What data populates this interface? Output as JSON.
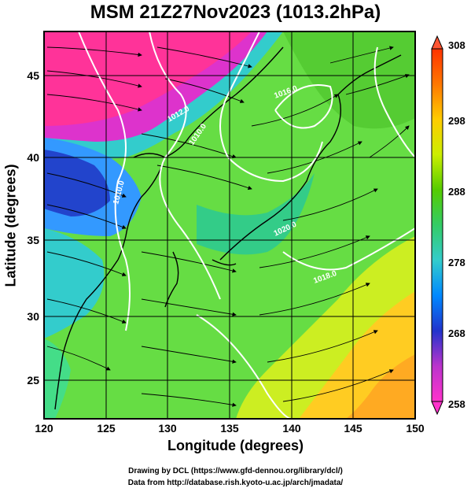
{
  "title": "MSM 21Z27Nov2023 (1013.2hPa)",
  "map": {
    "x_axis_title": "Longitude (degrees)",
    "y_axis_title": "Latitude  (degrees)",
    "x_ticks": [
      "120",
      "125",
      "130",
      "135",
      "140",
      "145",
      "150"
    ],
    "y_ticks": [
      "25",
      "30",
      "35",
      "40",
      "45"
    ],
    "x_range": [
      120,
      150
    ],
    "y_range": [
      22.4,
      47.6
    ],
    "contour_labels": [
      "1012.0",
      "1010.0",
      "1010.0",
      "1016.0",
      "1020.0",
      "1018.0"
    ]
  },
  "colorbar": {
    "ticks": [
      "258",
      "268",
      "278",
      "288",
      "298",
      "308"
    ],
    "range": [
      258,
      308
    ],
    "colors": [
      "#ff33cc",
      "#cc33cc",
      "#3333cc",
      "#0099ff",
      "#33cccc",
      "#33cc66",
      "#66cc00",
      "#ccee00",
      "#ffcc00",
      "#ff6600",
      "#ff3300"
    ]
  },
  "credits": {
    "line1": "Drawing by DCL (https://www.gfd-dennou.org/library/dcl/)",
    "line2": "Data from http://database.rish.kyoto-u.ac.jp/arch/jmadata/"
  }
}
